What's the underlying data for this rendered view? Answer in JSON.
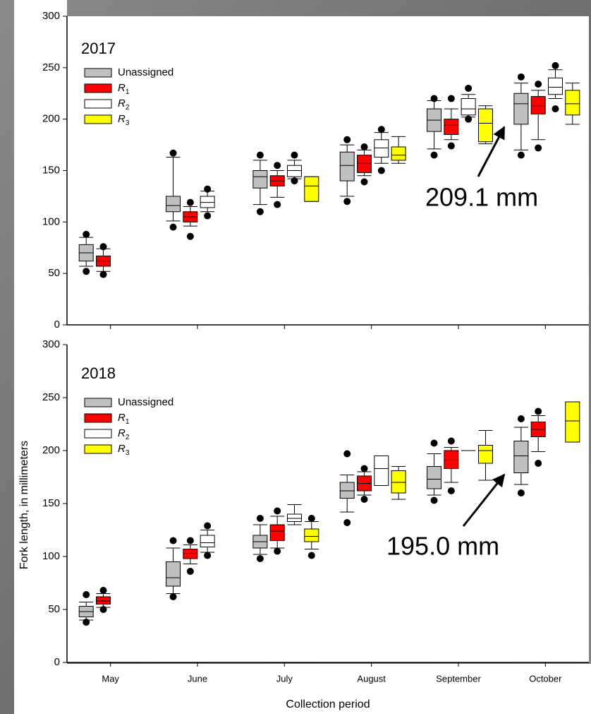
{
  "chart_data": [
    {
      "type": "box",
      "title": "2017",
      "annotation": "209.1 mm",
      "ylim": [
        0,
        300
      ],
      "yticks": [
        0,
        50,
        100,
        150,
        200,
        250,
        300
      ],
      "series": [
        {
          "name": "Unassigned",
          "color": "#c0c0c0",
          "boxes": [
            {
              "whislo": 57,
              "q1": 62,
              "med": 70,
              "q3": 78,
              "whishi": 85,
              "fliers": [
                52,
                88
              ]
            },
            {
              "whislo": 101,
              "q1": 110,
              "med": 116,
              "q3": 125,
              "whishi": 163,
              "fliers": [
                95,
                167
              ]
            },
            {
              "whislo": 117,
              "q1": 133,
              "med": 144,
              "q3": 150,
              "whishi": 160,
              "fliers": [
                110,
                165
              ]
            },
            {
              "whislo": 125,
              "q1": 140,
              "med": 155,
              "q3": 168,
              "whishi": 175,
              "fliers": [
                120,
                180
              ]
            },
            {
              "whislo": 171,
              "q1": 188,
              "med": 199,
              "q3": 210,
              "whishi": 218,
              "fliers": [
                165,
                220
              ]
            },
            {
              "whislo": 170,
              "q1": 195,
              "med": 215,
              "q3": 225,
              "whishi": 235,
              "fliers": [
                165,
                241
              ]
            }
          ]
        },
        {
          "name": "R1",
          "color": "#ff0000",
          "boxes": [
            {
              "whislo": 52,
              "q1": 57,
              "med": 62,
              "q3": 67,
              "whishi": 74,
              "fliers": [
                49,
                76
              ]
            },
            {
              "whislo": 96,
              "q1": 100,
              "med": 105,
              "q3": 110,
              "whishi": 115,
              "fliers": [
                86,
                119
              ]
            },
            {
              "whislo": 124,
              "q1": 135,
              "med": 140,
              "q3": 145,
              "whishi": 150,
              "fliers": [
                117,
                155
              ]
            },
            {
              "whislo": 145,
              "q1": 148,
              "med": 157,
              "q3": 165,
              "whishi": 170,
              "fliers": [
                139,
                173
              ]
            },
            {
              "whislo": 180,
              "q1": 185,
              "med": 194,
              "q3": 200,
              "whishi": 210,
              "fliers": [
                174,
                220
              ]
            },
            {
              "whislo": 180,
              "q1": 205,
              "med": 213,
              "q3": 222,
              "whishi": 228,
              "fliers": [
                172,
                234
              ]
            }
          ]
        },
        {
          "name": "R2",
          "color": "#ffffff",
          "boxes": [
            null,
            {
              "whislo": 110,
              "q1": 114,
              "med": 119,
              "q3": 125,
              "whishi": 130,
              "fliers": [
                106,
                132
              ]
            },
            {
              "whislo": 142,
              "q1": 144,
              "med": 150,
              "q3": 155,
              "whishi": 160,
              "fliers": [
                140,
                165
              ]
            },
            {
              "whislo": 157,
              "q1": 163,
              "med": 172,
              "q3": 180,
              "whishi": 187,
              "fliers": [
                150,
                190
              ]
            },
            {
              "whislo": 202,
              "q1": 204,
              "med": 210,
              "q3": 220,
              "whishi": 224,
              "fliers": [
                200,
                230
              ]
            },
            {
              "whislo": 220,
              "q1": 224,
              "med": 231,
              "q3": 240,
              "whishi": 248,
              "fliers": [
                210,
                252
              ]
            }
          ]
        },
        {
          "name": "R3",
          "color": "#ffff00",
          "boxes": [
            null,
            null,
            {
              "whislo": 120,
              "q1": 120,
              "med": 135,
              "q3": 144,
              "whishi": 144,
              "fliers": []
            },
            {
              "whislo": 157,
              "q1": 160,
              "med": 165,
              "q3": 173,
              "whishi": 183,
              "fliers": []
            },
            {
              "whislo": 176,
              "q1": 178,
              "med": 196,
              "q3": 210,
              "whishi": 213,
              "fliers": []
            },
            {
              "whislo": 195,
              "q1": 204,
              "med": 215,
              "q3": 228,
              "whishi": 235,
              "fliers": []
            }
          ]
        }
      ]
    },
    {
      "type": "box",
      "title": "2018",
      "annotation": "195.0 mm",
      "ylabel": "Fork length, in millimeters",
      "xlabel": "Collection period",
      "categories": [
        "May",
        "June",
        "July",
        "August",
        "September",
        "October"
      ],
      "ylim": [
        0,
        300
      ],
      "yticks": [
        0,
        50,
        100,
        150,
        200,
        250,
        300
      ],
      "series": [
        {
          "name": "Unassigned",
          "color": "#c0c0c0",
          "boxes": [
            {
              "whislo": 40,
              "q1": 43,
              "med": 48,
              "q3": 53,
              "whishi": 57,
              "fliers": [
                38,
                64
              ]
            },
            {
              "whislo": 65,
              "q1": 72,
              "med": 80,
              "q3": 95,
              "whishi": 108,
              "fliers": [
                62,
                115
              ]
            },
            {
              "whislo": 102,
              "q1": 108,
              "med": 114,
              "q3": 120,
              "whishi": 130,
              "fliers": [
                98,
                136
              ]
            },
            {
              "whislo": 142,
              "q1": 155,
              "med": 162,
              "q3": 170,
              "whishi": 177,
              "fliers": [
                132,
                197
              ]
            },
            {
              "whislo": 158,
              "q1": 164,
              "med": 173,
              "q3": 185,
              "whishi": 197,
              "fliers": [
                153,
                207
              ]
            },
            {
              "whislo": 168,
              "q1": 179,
              "med": 195,
              "q3": 209,
              "whishi": 222,
              "fliers": [
                160,
                230
              ]
            }
          ]
        },
        {
          "name": "R1",
          "color": "#ff0000",
          "boxes": [
            {
              "whislo": 52,
              "q1": 55,
              "med": 58,
              "q3": 62,
              "whishi": 65,
              "fliers": [
                50,
                68
              ]
            },
            {
              "whislo": 93,
              "q1": 98,
              "med": 103,
              "q3": 107,
              "whishi": 111,
              "fliers": [
                86,
                115
              ]
            },
            {
              "whislo": 108,
              "q1": 115,
              "med": 124,
              "q3": 130,
              "whishi": 138,
              "fliers": [
                105,
                143
              ]
            },
            {
              "whislo": 158,
              "q1": 162,
              "med": 169,
              "q3": 176,
              "whishi": 180,
              "fliers": [
                154,
                183
              ]
            },
            {
              "whislo": 170,
              "q1": 183,
              "med": 191,
              "q3": 200,
              "whishi": 203,
              "fliers": [
                162,
                209
              ]
            },
            {
              "whislo": 199,
              "q1": 213,
              "med": 220,
              "q3": 227,
              "whishi": 233,
              "fliers": [
                188,
                237
              ]
            }
          ]
        },
        {
          "name": "R2",
          "color": "#ffffff",
          "boxes": [
            null,
            {
              "whislo": 104,
              "q1": 109,
              "med": 113,
              "q3": 120,
              "whishi": 125,
              "fliers": [
                101,
                129
              ]
            },
            {
              "whislo": 130,
              "q1": 133,
              "med": 136,
              "q3": 140,
              "whishi": 149,
              "fliers": []
            },
            {
              "whislo": 167,
              "q1": 167,
              "med": 183,
              "q3": 195,
              "whishi": 195,
              "fliers": []
            },
            {
              "whislo": 200,
              "q1": 200,
              "med": 200,
              "q3": 200,
              "whishi": 200,
              "fliers": []
            },
            null
          ]
        },
        {
          "name": "R3",
          "color": "#ffff00",
          "boxes": [
            null,
            null,
            {
              "whislo": 107,
              "q1": 114,
              "med": 119,
              "q3": 126,
              "whishi": 133,
              "fliers": [
                101,
                136
              ]
            },
            {
              "whislo": 154,
              "q1": 160,
              "med": 170,
              "q3": 181,
              "whishi": 185,
              "fliers": []
            },
            {
              "whislo": 172,
              "q1": 188,
              "med": 200,
              "q3": 205,
              "whishi": 219,
              "fliers": []
            },
            {
              "whislo": 208,
              "q1": 208,
              "med": 228,
              "q3": 246,
              "whishi": 246,
              "fliers": []
            }
          ]
        }
      ]
    }
  ]
}
